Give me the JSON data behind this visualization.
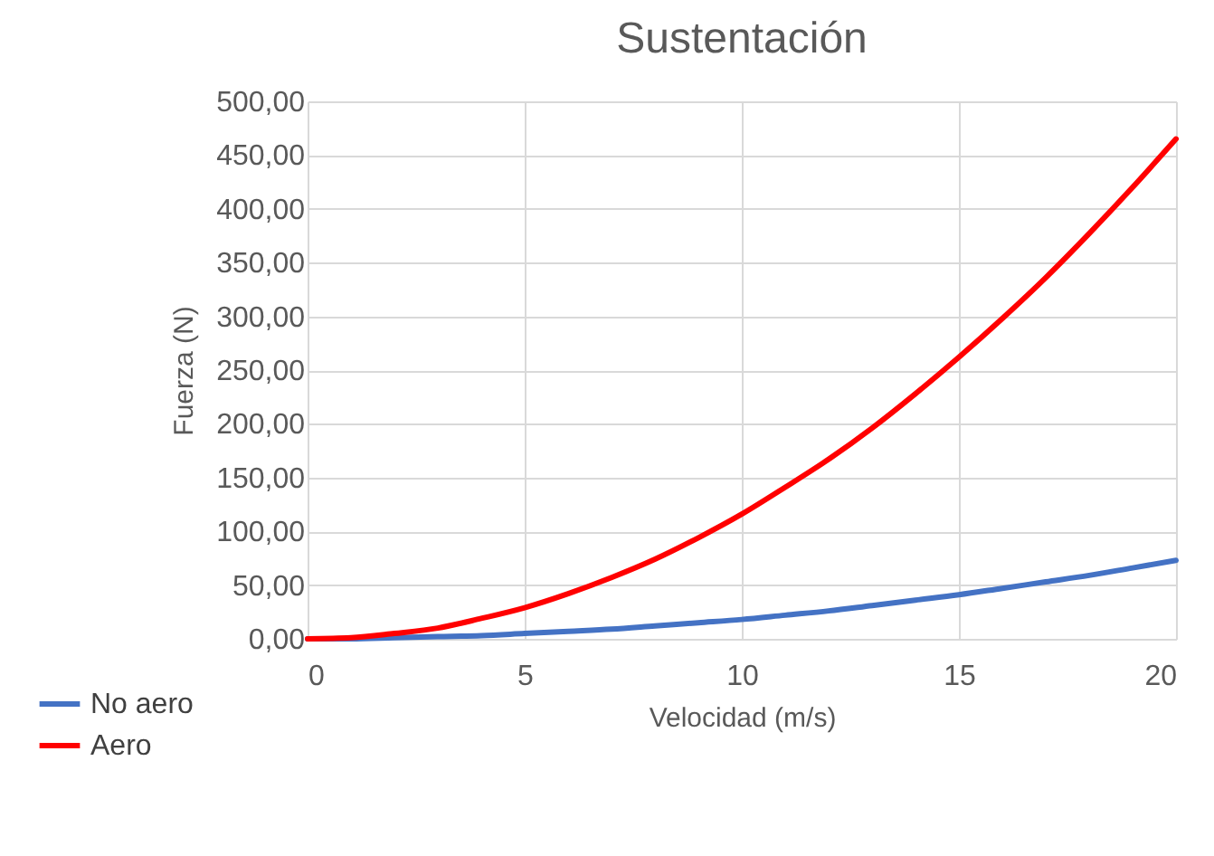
{
  "chart_data": {
    "type": "line",
    "title": "Sustentación",
    "xlabel": "Velocidad (m/s)",
    "ylabel": "Fuerza (N)",
    "x": [
      0,
      1,
      2,
      3,
      4,
      5,
      6,
      7,
      8,
      9,
      10,
      11,
      12,
      13,
      14,
      15,
      16,
      17,
      18,
      19,
      20
    ],
    "series": [
      {
        "name": "No aero",
        "color": "#4472c4",
        "values": [
          0,
          0,
          1,
          2,
          3,
          5,
          7,
          9,
          12,
          15,
          18,
          22,
          26,
          31,
          36,
          41,
          47,
          53,
          59,
          66,
          73
        ]
      },
      {
        "name": "Aero",
        "color": "#ff0000",
        "values": [
          0,
          1,
          5,
          10,
          19,
          29,
          42,
          57,
          74,
          94,
          116,
          141,
          167,
          196,
          228,
          262,
          298,
          336,
          377,
          420,
          465
        ]
      }
    ],
    "xlim": [
      0,
      20
    ],
    "xticks": [
      0,
      5,
      10,
      15,
      20
    ],
    "ylim": [
      0,
      500
    ],
    "yticks": [
      {
        "value": 0,
        "label": "0,00"
      },
      {
        "value": 50,
        "label": "50,00"
      },
      {
        "value": 100,
        "label": "100,00"
      },
      {
        "value": 150,
        "label": "150,00"
      },
      {
        "value": 200,
        "label": "200,00"
      },
      {
        "value": 250,
        "label": "250,00"
      },
      {
        "value": 300,
        "label": "300,00"
      },
      {
        "value": 350,
        "label": "350,00"
      },
      {
        "value": 400,
        "label": "400,00"
      },
      {
        "value": 450,
        "label": "450,00"
      },
      {
        "value": 500,
        "label": "500,00"
      }
    ],
    "grid": true,
    "legend": "bottom left",
    "marker": "none",
    "line_style": "solid"
  }
}
